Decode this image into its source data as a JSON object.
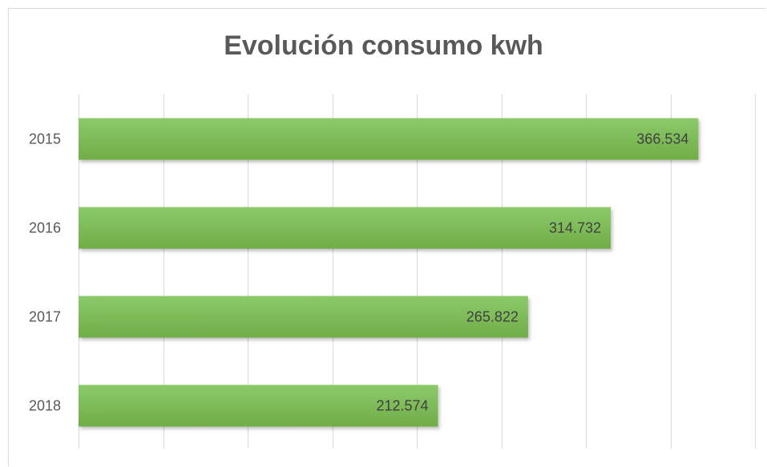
{
  "chart_data": {
    "type": "bar",
    "orientation": "horizontal",
    "title": "Evolución consumo kwh",
    "categories": [
      "2015",
      "2016",
      "2017",
      "2018"
    ],
    "values": [
      366534,
      314732,
      265822,
      212574
    ],
    "data_labels": [
      "366.534",
      "314.732",
      "265.822",
      "212.574"
    ],
    "xlim": [
      0,
      400000
    ],
    "x_grid_step": 50000,
    "grid": true,
    "legend": "none",
    "bar_color": "#70ad47",
    "bar_color_light": "#8cc96a",
    "grid_color": "#d9d9d9"
  }
}
